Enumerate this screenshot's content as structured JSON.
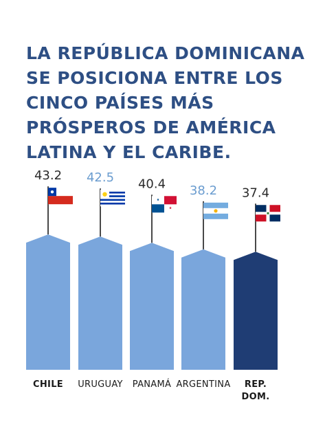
{
  "headline": {
    "lines": [
      "LA REPÚBLICA DOMINICANA",
      "SE POSICIONA ENTRE LOS",
      "CINCO PAÍSES MÁS",
      "PRÓSPEROS DE AMÉRICA",
      "LATINA Y EL CARIBE."
    ]
  },
  "colors": {
    "title": "#2e4f84",
    "bar_light": "#7aa6dc",
    "bar_dark": "#1f3d74",
    "value_light": "#6a9ccf",
    "value_dark": "#2b2b2b"
  },
  "chart_data": {
    "type": "bar",
    "categories": [
      "CHILE",
      "URUGUAY",
      "PANAMÁ",
      "ARGENTINA",
      "REP. DOM."
    ],
    "category_lines": [
      [
        "CHILE"
      ],
      [
        "URUGUAY"
      ],
      [
        "PANAMÁ"
      ],
      [
        "ARGENTINA"
      ],
      [
        "REP.",
        "DOM."
      ]
    ],
    "values": [
      43.2,
      42.5,
      40.4,
      38.2,
      37.4
    ],
    "value_labels": [
      "43.2",
      "42.5",
      "40.4",
      "38.2",
      "37.4"
    ],
    "highlight": "REP. DOM.",
    "flags": [
      "chile-flag-icon",
      "uruguay-flag-icon",
      "panama-flag-icon",
      "argentina-flag-icon",
      "dominican-republic-flag-icon"
    ],
    "ylim": [
      0,
      45
    ],
    "grid": false
  }
}
